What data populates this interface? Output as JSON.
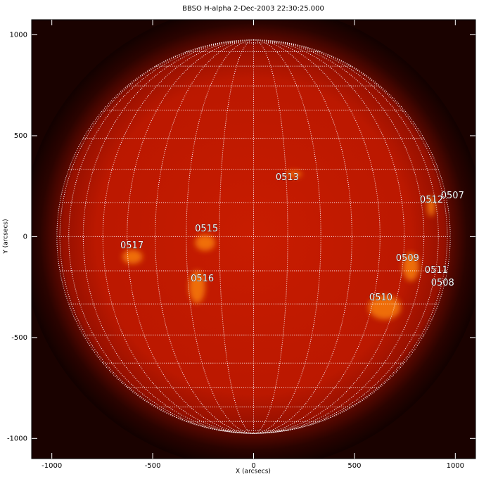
{
  "chart_data": {
    "type": "image",
    "title": "BBSO H-alpha  2-Dec-2003 22:30:25.000",
    "x_label": "X (arcsecs)",
    "y_label": "Y (arcsecs)",
    "xlim": [
      -1100,
      1100
    ],
    "ylim": [
      -1100,
      1075
    ],
    "xticks": [
      -1000,
      -500,
      0,
      500,
      1000
    ],
    "yticks": [
      -1000,
      -500,
      0,
      500,
      1000
    ],
    "disk_radius": 975,
    "grid": true,
    "grid_spacing": 10,
    "annotations": [
      {
        "text": "0513",
        "x": 167,
        "y": 293
      },
      {
        "text": "0507",
        "x": 986,
        "y": 202
      },
      {
        "text": "0512",
        "x": 882,
        "y": 181
      },
      {
        "text": "0515",
        "x": -233,
        "y": 38
      },
      {
        "text": "0517",
        "x": -603,
        "y": -45
      },
      {
        "text": "0509",
        "x": 763,
        "y": -108
      },
      {
        "text": "0511",
        "x": 906,
        "y": -167
      },
      {
        "text": "0508",
        "x": 937,
        "y": -230
      },
      {
        "text": "0516",
        "x": -254,
        "y": -209
      },
      {
        "text": "0510",
        "x": 631,
        "y": -303
      }
    ]
  }
}
